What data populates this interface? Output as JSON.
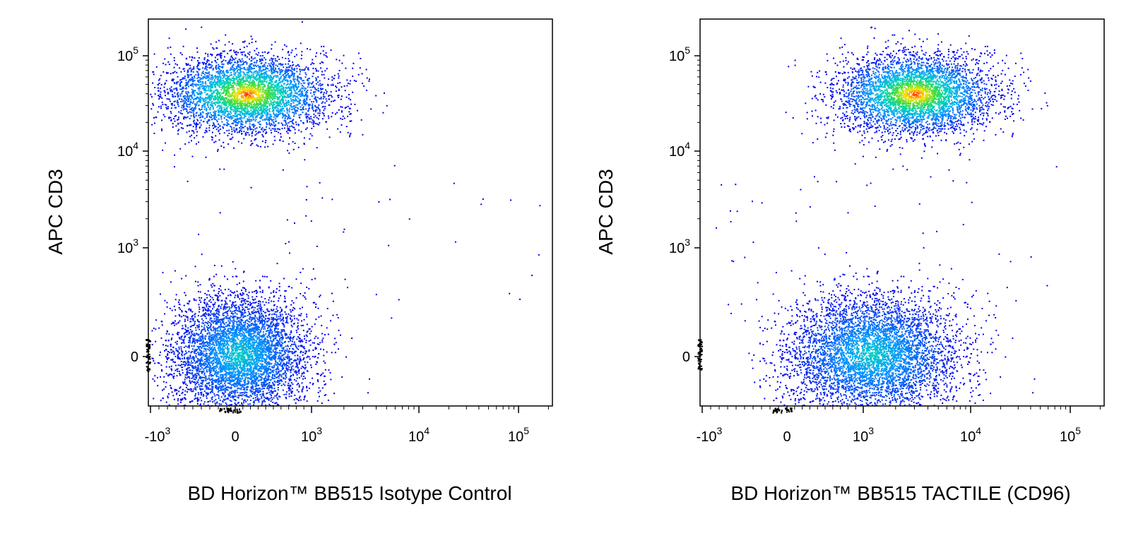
{
  "chart_data": [
    {
      "type": "scatter",
      "ylabel": "APC  CD3",
      "xlabel": "BD Horizon™ BB515 Isotype Control",
      "x_ticks": [
        "-10^3",
        "0",
        "10^3",
        "10^4",
        "10^5"
      ],
      "y_ticks": [
        "0",
        "10^3",
        "10^4",
        "10^5"
      ],
      "scale": "biexponential",
      "populations": [
        {
          "name": "CD3+",
          "x_center": 150,
          "y_center": 40000
        },
        {
          "name": "CD3-",
          "x_center": 50,
          "y_center": 20
        }
      ]
    },
    {
      "type": "scatter",
      "ylabel": "APC  CD3",
      "xlabel": "BD Horizon™ BB515 TACTILE (CD96)",
      "x_ticks": [
        "-10^3",
        "0",
        "10^3",
        "10^4",
        "10^5"
      ],
      "y_ticks": [
        "0",
        "10^3",
        "10^4",
        "10^5"
      ],
      "scale": "biexponential",
      "populations": [
        {
          "name": "CD3+",
          "x_center": 3000,
          "y_center": 40000
        },
        {
          "name": "CD3-",
          "x_center": 1200,
          "y_center": 20
        }
      ]
    }
  ],
  "colors": {
    "density_low": "#0000ee",
    "density_mid": "#00d0c0",
    "density_high": "#ff2000"
  }
}
